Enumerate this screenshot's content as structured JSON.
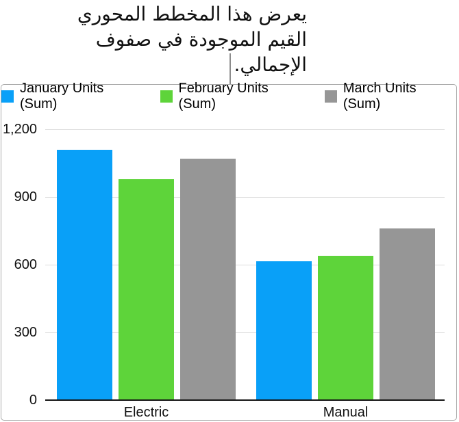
{
  "callout": {
    "lines": [
      "يعرض هذا المخطط المحوري",
      "القيم الموجودة في صفوف",
      "الإجمالي."
    ]
  },
  "chart_data": {
    "type": "bar",
    "title": "",
    "categories": [
      "Electric",
      "Manual"
    ],
    "series": [
      {
        "name": "January Units (Sum)",
        "color": "#09a0f8",
        "values": [
          1110,
          615
        ]
      },
      {
        "name": "February Units (Sum)",
        "color": "#5ed43a",
        "values": [
          980,
          640
        ]
      },
      {
        "name": "March Units (Sum)",
        "color": "#969696",
        "values": [
          1070,
          760
        ]
      }
    ],
    "ylim": [
      0,
      1200
    ],
    "yticks": [
      0,
      300,
      600,
      900,
      1200
    ],
    "ytick_labels": [
      "0",
      "300",
      "600",
      "900",
      "1,200"
    ],
    "grid": true,
    "legend_position": "top-center",
    "xlabel": "",
    "ylabel": ""
  },
  "colors": {
    "axis_line": "#151515",
    "gridline": "#dcdcdc",
    "frame_border": "#a9a9a9",
    "callout_line": "#8c8c8c",
    "text": "#111111"
  }
}
